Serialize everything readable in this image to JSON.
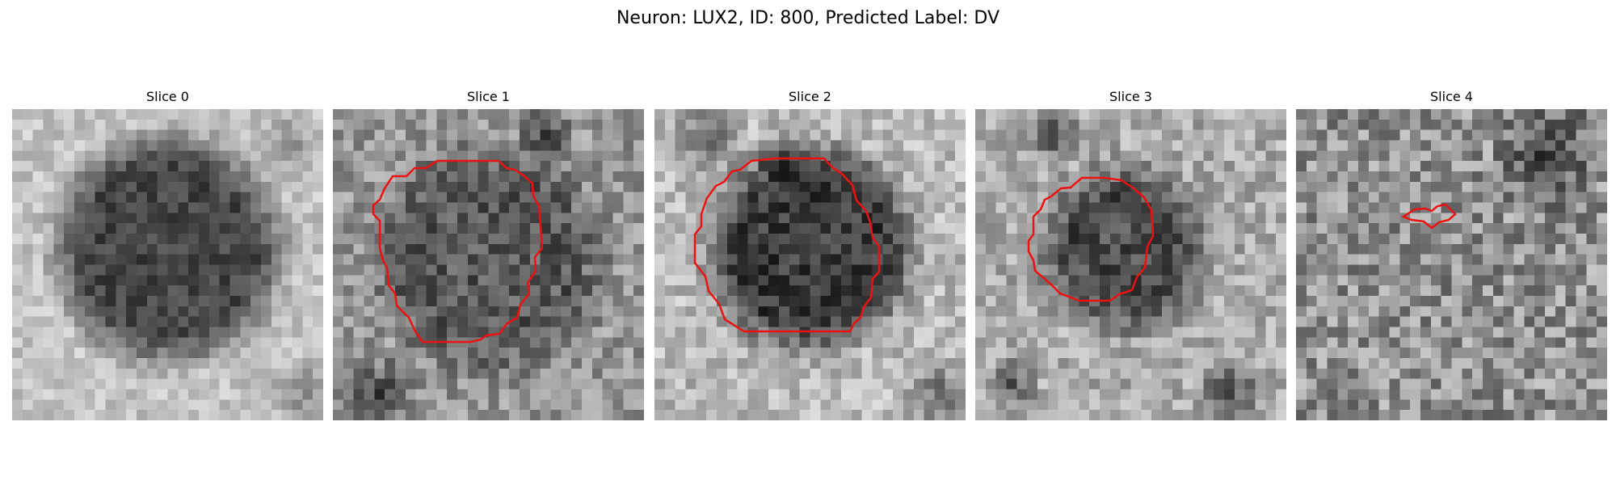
{
  "figure": {
    "title": "Neuron: LUX2, ID: 800, Predicted Label: DV",
    "contour_color": "#ee1111"
  },
  "panels": [
    {
      "title": "Slice 0",
      "has_contour": false
    },
    {
      "title": "Slice 1",
      "has_contour": true
    },
    {
      "title": "Slice 2",
      "has_contour": true
    },
    {
      "title": "Slice 3",
      "has_contour": true
    },
    {
      "title": "Slice 4",
      "has_contour": true
    }
  ]
}
